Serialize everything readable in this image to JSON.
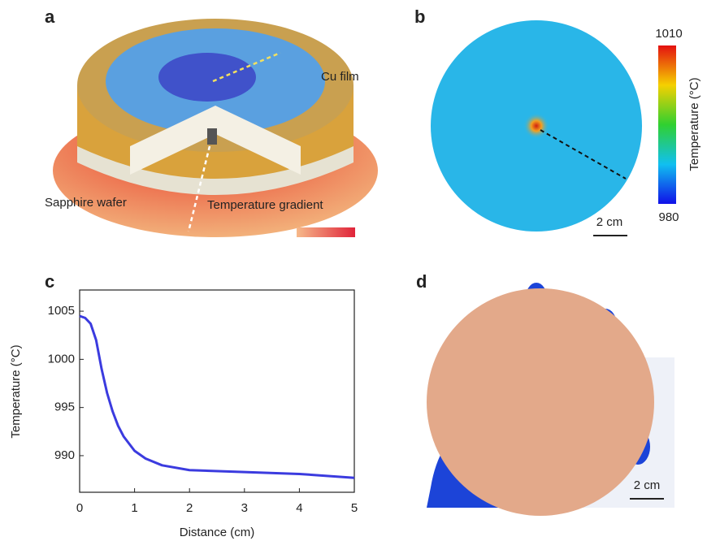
{
  "panels": {
    "a": {
      "label": "a",
      "cu_film": "Cu film",
      "sapphire": "Sapphire wafer",
      "gradient": "Temperature gradient"
    },
    "b": {
      "label": "b",
      "colorbar_max": 1010,
      "colorbar_min": 980,
      "colorbar_title": "Temperature (°C)",
      "scale": "2 cm"
    },
    "c": {
      "label": "c"
    },
    "d": {
      "label": "d",
      "scale": "2 cm"
    }
  },
  "chart_data": {
    "type": "line",
    "x_label": "Distance (cm)",
    "y_label": "Temperature (°C)",
    "x": [
      0,
      0.1,
      0.2,
      0.3,
      0.4,
      0.5,
      0.6,
      0.7,
      0.8,
      1.0,
      1.2,
      1.5,
      2,
      3,
      4,
      5
    ],
    "series": [
      {
        "color": "#3b3bdf",
        "values": [
          1004.5,
          1004.3,
          1003.7,
          1002,
          999,
          996.5,
          994.6,
          993.1,
          992,
          990.5,
          989.7,
          989,
          988.5,
          988.3,
          988.1,
          987.7
        ]
      }
    ],
    "xlim": [
      0,
      5
    ],
    "xticks": [
      0,
      1,
      2,
      3,
      4,
      5
    ],
    "ylim": [
      986.2,
      1007.2
    ],
    "yticks": [
      990,
      995,
      1000,
      1005
    ]
  }
}
